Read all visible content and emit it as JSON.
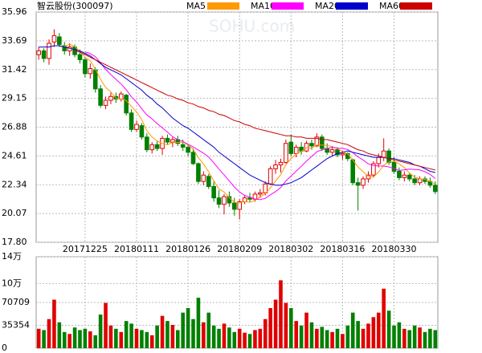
{
  "chart_data": {
    "type": "candlestick",
    "title": "智云股份(300097)",
    "watermark": "SOHU.com",
    "up_color": "#e00000",
    "down_color": "#008000",
    "ylim": [
      17.8,
      35.96
    ],
    "yticks": [
      {
        "value": 17.8,
        "label": "17.80"
      },
      20.07,
      22.34,
      24.61,
      26.88,
      29.15,
      31.42,
      33.69,
      35.96
    ],
    "volume_lim": [
      0,
      141418
    ],
    "volume_ticks": [
      0,
      35354,
      70709,
      {
        "value": 100000,
        "label": "10万"
      },
      {
        "value": 141418,
        "label": "14万"
      }
    ],
    "grid": true,
    "categories": [
      null,
      null,
      null,
      null,
      null,
      null,
      null,
      null,
      null,
      "20171225",
      null,
      null,
      null,
      null,
      null,
      null,
      null,
      null,
      null,
      "20180111",
      null,
      null,
      null,
      null,
      null,
      null,
      null,
      null,
      null,
      "20180126",
      null,
      null,
      null,
      null,
      null,
      null,
      null,
      null,
      null,
      "20180209",
      null,
      null,
      null,
      null,
      null,
      null,
      null,
      null,
      null,
      "20180302",
      null,
      null,
      null,
      null,
      null,
      null,
      null,
      null,
      null,
      "20180316",
      null,
      null,
      null,
      null,
      null,
      null,
      null,
      null,
      null,
      "20180330",
      null,
      null,
      null,
      null,
      null,
      null,
      null,
      null
    ],
    "ohlc": [
      [
        32.6,
        33.2,
        32.2,
        32.9
      ],
      [
        32.9,
        33.1,
        32.0,
        32.3
      ],
      [
        32.3,
        33.8,
        31.8,
        33.5
      ],
      [
        33.6,
        34.6,
        33.2,
        34.1
      ],
      [
        34.0,
        34.3,
        33.2,
        33.4
      ],
      [
        33.3,
        33.6,
        32.6,
        32.9
      ],
      [
        32.9,
        33.5,
        32.5,
        33.2
      ],
      [
        33.2,
        33.4,
        32.4,
        32.6
      ],
      [
        32.6,
        33.0,
        31.9,
        32.2
      ],
      [
        32.2,
        32.4,
        30.8,
        31.1
      ],
      [
        31.1,
        31.9,
        30.7,
        31.5
      ],
      [
        31.4,
        31.6,
        29.6,
        29.9
      ],
      [
        29.9,
        30.2,
        28.4,
        28.6
      ],
      [
        28.6,
        29.3,
        28.3,
        29.0
      ],
      [
        29.0,
        29.6,
        28.7,
        29.3
      ],
      [
        29.3,
        29.6,
        28.8,
        29.1
      ],
      [
        29.1,
        29.7,
        28.9,
        29.5
      ],
      [
        29.4,
        29.5,
        27.8,
        28.0
      ],
      [
        28.0,
        28.3,
        26.5,
        26.7
      ],
      [
        26.7,
        27.4,
        26.5,
        27.1
      ],
      [
        27.0,
        27.2,
        25.9,
        26.1
      ],
      [
        26.1,
        26.4,
        24.9,
        25.1
      ],
      [
        25.1,
        25.7,
        24.8,
        25.5
      ],
      [
        25.5,
        25.8,
        25.0,
        25.2
      ],
      [
        25.2,
        26.2,
        24.7,
        26.0
      ],
      [
        26.0,
        26.3,
        25.5,
        25.7
      ],
      [
        25.7,
        26.1,
        25.3,
        25.9
      ],
      [
        25.9,
        26.2,
        25.4,
        25.6
      ],
      [
        25.5,
        25.9,
        25.0,
        25.3
      ],
      [
        25.3,
        25.5,
        24.6,
        24.9
      ],
      [
        24.9,
        25.2,
        23.9,
        24.0
      ],
      [
        24.0,
        24.1,
        22.4,
        22.6
      ],
      [
        22.6,
        23.4,
        22.3,
        23.1
      ],
      [
        23.0,
        23.2,
        22.0,
        22.2
      ],
      [
        22.2,
        22.6,
        21.0,
        21.3
      ],
      [
        21.3,
        21.9,
        20.5,
        20.8
      ],
      [
        20.8,
        21.6,
        20.0,
        21.4
      ],
      [
        21.4,
        21.8,
        20.6,
        20.9
      ],
      [
        20.9,
        21.3,
        19.9,
        20.4
      ],
      [
        20.4,
        21.2,
        19.6,
        21.0
      ],
      [
        21.0,
        21.5,
        20.8,
        21.3
      ],
      [
        21.3,
        21.7,
        21.0,
        21.2
      ],
      [
        21.2,
        21.8,
        21.0,
        21.6
      ],
      [
        21.6,
        22.0,
        21.3,
        21.7
      ],
      [
        21.7,
        22.6,
        21.5,
        22.4
      ],
      [
        22.4,
        23.8,
        22.3,
        23.6
      ],
      [
        23.6,
        24.3,
        23.2,
        23.9
      ],
      [
        23.9,
        24.4,
        23.3,
        24.1
      ],
      [
        24.1,
        25.9,
        24.0,
        25.6
      ],
      [
        25.7,
        26.3,
        24.6,
        24.8
      ],
      [
        24.8,
        25.5,
        24.5,
        25.3
      ],
      [
        25.3,
        25.7,
        24.7,
        25.0
      ],
      [
        25.0,
        25.8,
        24.9,
        25.6
      ],
      [
        25.6,
        25.9,
        25.1,
        25.4
      ],
      [
        25.4,
        26.4,
        25.3,
        26.1
      ],
      [
        26.1,
        26.3,
        25.0,
        25.2
      ],
      [
        25.2,
        25.6,
        24.7,
        24.9
      ],
      [
        24.9,
        25.4,
        24.6,
        25.1
      ],
      [
        25.1,
        25.3,
        24.5,
        24.7
      ],
      [
        24.7,
        25.0,
        24.3,
        24.8
      ],
      [
        24.8,
        24.9,
        24.2,
        24.4
      ],
      [
        24.3,
        24.4,
        22.3,
        22.5
      ],
      [
        22.5,
        22.9,
        20.3,
        22.3
      ],
      [
        22.3,
        23.0,
        22.0,
        22.8
      ],
      [
        22.8,
        23.4,
        22.5,
        23.1
      ],
      [
        23.1,
        24.2,
        22.9,
        24.0
      ],
      [
        24.0,
        24.8,
        23.7,
        24.5
      ],
      [
        24.5,
        26.0,
        24.2,
        25.0
      ],
      [
        25.0,
        25.2,
        23.9,
        24.1
      ],
      [
        24.1,
        24.5,
        23.2,
        23.4
      ],
      [
        23.4,
        23.7,
        22.7,
        22.9
      ],
      [
        22.9,
        23.4,
        22.6,
        23.1
      ],
      [
        23.1,
        23.3,
        22.6,
        22.8
      ],
      [
        22.8,
        23.1,
        22.3,
        22.5
      ],
      [
        22.5,
        23.0,
        22.3,
        22.8
      ],
      [
        22.8,
        23.0,
        22.4,
        22.6
      ],
      [
        22.6,
        22.9,
        22.1,
        22.3
      ],
      [
        22.3,
        22.6,
        21.6,
        21.8
      ]
    ],
    "volume": [
      30000,
      28000,
      45000,
      75000,
      40000,
      25000,
      22000,
      32000,
      28000,
      30000,
      26000,
      20000,
      52000,
      70000,
      35000,
      30000,
      25000,
      42000,
      38000,
      30000,
      28000,
      25000,
      20000,
      35000,
      50000,
      42000,
      36000,
      28000,
      55000,
      62000,
      45000,
      78000,
      40000,
      55000,
      35000,
      30000,
      38000,
      32000,
      25000,
      30000,
      24000,
      22000,
      28000,
      30000,
      45000,
      62000,
      75000,
      105000,
      70000,
      62000,
      42000,
      35000,
      55000,
      40000,
      30000,
      33000,
      28000,
      25000,
      30000,
      22000,
      35000,
      55000,
      42000,
      30000,
      38000,
      48000,
      55000,
      92000,
      58000,
      35000,
      40000,
      30000,
      28000,
      35000,
      32000,
      25000,
      30000,
      28000
    ],
    "series": [
      {
        "name": "MA5",
        "color": "#ff9900",
        "values": [
          null,
          null,
          null,
          null,
          33.24,
          33.24,
          33.42,
          33.24,
          32.86,
          32.4,
          32.12,
          31.46,
          30.66,
          30.02,
          29.66,
          29.18,
          29.1,
          28.98,
          28.52,
          28.08,
          27.48,
          26.6,
          26.1,
          25.8,
          25.58,
          25.5,
          25.66,
          25.68,
          25.7,
          25.48,
          25.14,
          24.48,
          23.98,
          23.36,
          22.64,
          22.0,
          21.76,
          21.32,
          20.96,
          20.9,
          21.0,
          20.96,
          21.1,
          21.36,
          21.64,
          22.1,
          22.64,
          23.14,
          23.92,
          24.4,
          24.74,
          24.96,
          25.26,
          25.22,
          25.48,
          25.46,
          25.44,
          25.34,
          25.2,
          24.94,
          24.78,
          24.3,
          23.74,
          23.36,
          23.02,
          22.94,
          23.34,
          23.88,
          24.14,
          24.2,
          23.98,
          23.7,
          23.26,
          22.94,
          22.82,
          22.76,
          22.6,
          22.4
        ]
      },
      {
        "name": "MA10",
        "color": "#ff00ff",
        "values": [
          null,
          null,
          null,
          null,
          null,
          null,
          null,
          null,
          null,
          32.82,
          32.68,
          32.44,
          31.95,
          31.44,
          31.03,
          30.65,
          30.28,
          29.82,
          29.27,
          28.87,
          28.33,
          27.85,
          27.54,
          27.16,
          26.83,
          26.49,
          26.13,
          25.89,
          25.75,
          25.53,
          25.32,
          25.07,
          24.83,
          24.53,
          24.06,
          23.57,
          23.12,
          22.65,
          22.16,
          21.77,
          21.5,
          21.36,
          21.21,
          21.16,
          21.27,
          21.55,
          21.8,
          22.12,
          22.64,
          23.02,
          23.42,
          23.8,
          24.2,
          24.57,
          24.94,
          25.1,
          25.2,
          25.3,
          25.21,
          25.21,
          25.12,
          24.87,
          24.54,
          24.28,
          23.98,
          23.86,
          23.82,
          23.81,
          23.75,
          23.61,
          23.46,
          23.52,
          23.57,
          23.54,
          23.51,
          23.37,
          23.15,
          22.83
        ]
      },
      {
        "name": "MA20",
        "color": "#0000cc",
        "values": [
          33.2,
          33.2,
          33.2,
          33.3,
          33.3,
          33.2,
          33.1,
          33.0,
          32.9,
          32.7,
          32.5,
          32.2,
          31.9,
          31.6,
          31.4,
          31.2,
          31.0,
          30.7,
          30.4,
          30.1,
          29.8,
          29.4,
          29.1,
          28.7,
          28.4,
          28.0,
          27.6,
          27.3,
          27.0,
          26.8,
          26.5,
          26.2,
          25.9,
          25.6,
          25.3,
          24.9,
          24.6,
          24.3,
          24.0,
          23.7,
          23.4,
          23.1,
          22.9,
          22.7,
          22.5,
          22.4,
          22.3,
          22.3,
          22.4,
          22.5,
          22.7,
          22.9,
          23.2,
          23.5,
          23.8,
          24.1,
          24.4,
          24.6,
          24.8,
          24.9,
          25.0,
          24.9,
          24.8,
          24.7,
          24.6,
          24.5,
          24.5,
          24.5,
          24.4,
          24.4,
          24.3,
          24.2,
          24.1,
          23.9,
          23.8,
          23.6,
          23.4,
          23.3
        ]
      },
      {
        "name": "MA60",
        "color": "#cc0000",
        "values": [
          null,
          null,
          null,
          null,
          null,
          null,
          null,
          32.9,
          32.8,
          32.6,
          32.4,
          32.2,
          32.0,
          31.8,
          31.6,
          31.4,
          31.2,
          31.0,
          30.8,
          30.6,
          30.4,
          30.2,
          30.0,
          29.8,
          29.6,
          29.4,
          29.3,
          29.1,
          29.0,
          28.8,
          28.7,
          28.5,
          28.4,
          28.2,
          28.1,
          27.9,
          27.8,
          27.6,
          27.4,
          27.3,
          27.1,
          27.0,
          26.8,
          26.7,
          26.6,
          26.5,
          26.4,
          26.3,
          26.2,
          26.2,
          26.1,
          26.1,
          26.0,
          26.0,
          26.0,
          25.9,
          25.9,
          25.8,
          25.7,
          25.6,
          25.5,
          25.3,
          25.1,
          25.0,
          24.8,
          24.7,
          24.6,
          24.5,
          24.4,
          24.3,
          24.2,
          24.1,
          24.0,
          23.9,
          23.8,
          23.7,
          23.6,
          23.5
        ]
      }
    ]
  }
}
